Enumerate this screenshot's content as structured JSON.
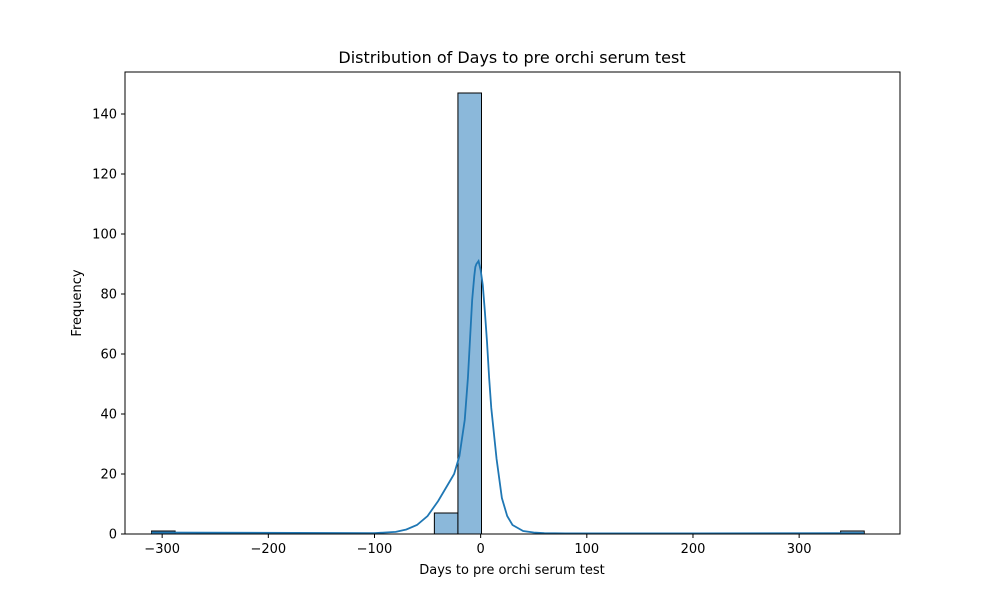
{
  "chart_data": {
    "type": "bar",
    "title": "Distribution of Days to pre orchi serum test",
    "xlabel": "Days to pre orchi serum test",
    "ylabel": "Frequency",
    "xlim": [
      -335,
      395
    ],
    "ylim": [
      0,
      154
    ],
    "xticks": [
      -300,
      -200,
      -100,
      0,
      100,
      200,
      300
    ],
    "xtick_labels": [
      "−300",
      "−200",
      "−100",
      "0",
      "100",
      "200",
      "300"
    ],
    "yticks": [
      0,
      20,
      40,
      60,
      80,
      100,
      120,
      140
    ],
    "ytick_labels": [
      "0",
      "20",
      "40",
      "60",
      "80",
      "100",
      "120",
      "140"
    ],
    "grid": false,
    "bins": [
      {
        "x0": -310,
        "x1": -287.8,
        "count": 1
      },
      {
        "x0": -43.6,
        "x1": -21.4,
        "count": 7
      },
      {
        "x0": -21.4,
        "x1": 0.8,
        "count": 147
      },
      {
        "x0": 339.1,
        "x1": 361.3,
        "count": 1
      }
    ],
    "kde": {
      "x": [
        -310,
        -100,
        -80,
        -70,
        -60,
        -50,
        -40,
        -30,
        -25,
        -20,
        -15,
        -12,
        -10,
        -8,
        -6,
        -5,
        -4,
        -2,
        0,
        2,
        4,
        6,
        8,
        10,
        15,
        20,
        25,
        30,
        35,
        40,
        50,
        60,
        80,
        100,
        200,
        361
      ],
      "y": [
        0.5,
        0.3,
        0.7,
        1.5,
        3,
        6,
        11,
        17,
        20,
        26,
        38,
        52,
        65,
        78,
        86,
        89,
        90,
        91,
        88,
        83,
        74,
        64,
        52,
        42,
        25,
        12,
        6,
        3,
        2,
        1,
        0.5,
        0.3,
        0.2,
        0.2,
        0.2,
        0.3
      ]
    },
    "colors": {
      "bar_fill": "#8bb8da",
      "bar_edge": "#000000",
      "kde_line": "#1f77b4"
    }
  }
}
